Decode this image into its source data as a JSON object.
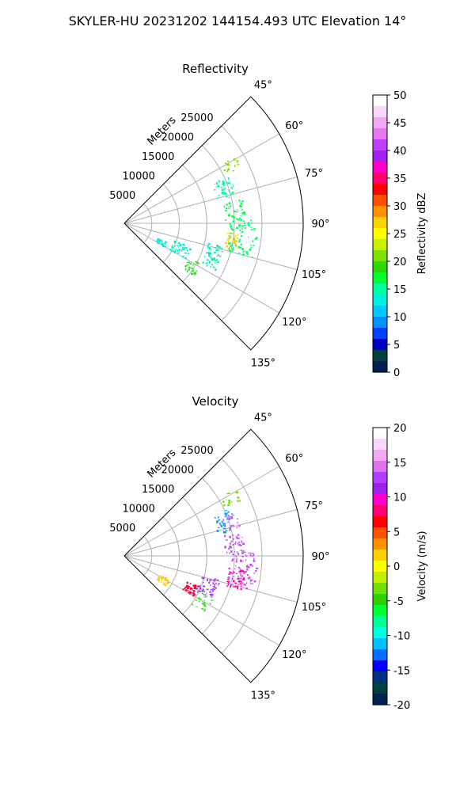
{
  "suptitle": "SKYLER-HU  20231202  144154.493 UTC Elevation 14°",
  "chart_data": [
    {
      "type": "polar-sector",
      "title": "Reflectivity",
      "range_label": "Meters",
      "range_ticks": [
        "5000",
        "10000",
        "15000",
        "20000",
        "25000"
      ],
      "range_tick_values": [
        5000,
        10000,
        15000,
        20000,
        25000
      ],
      "range_max": 32500,
      "theta_ticks": [
        "45°",
        "60°",
        "75°",
        "90°",
        "105°",
        "120°",
        "135°"
      ],
      "theta_tick_values": [
        45,
        60,
        75,
        90,
        105,
        120,
        135
      ],
      "theta_range": [
        45,
        135
      ],
      "colorbar": {
        "label": "Reflectivity dBZ",
        "vmin": 0,
        "vmax": 50,
        "ticks": [
          "0",
          "5",
          "10",
          "15",
          "20",
          "25",
          "30",
          "35",
          "40",
          "45",
          "50"
        ],
        "colors": [
          "#ffffff",
          "#f8d8f8",
          "#f0a8f0",
          "#e878f0",
          "#c040ff",
          "#a020f0",
          "#ff00c8",
          "#ff0070",
          "#ff0000",
          "#ff5000",
          "#ff9000",
          "#ffd000",
          "#ffff00",
          "#c8f000",
          "#80e000",
          "#30d800",
          "#00ff30",
          "#00ffa0",
          "#00f0e0",
          "#00c8ff",
          "#0090ff",
          "#0040ff",
          "#0000c0",
          "#004040",
          "#002050"
        ]
      },
      "data_clusters": [
        {
          "theta": 61,
          "r": 22000,
          "dr": 1800,
          "dth": 3,
          "n": 14,
          "color": "#7ee000"
        },
        {
          "theta": 71,
          "r": 19200,
          "dr": 1800,
          "dth": 6,
          "n": 40,
          "color": "#00ffa0"
        },
        {
          "theta": 83,
          "r": 20000,
          "dr": 1800,
          "dth": 5,
          "n": 40,
          "color": "#00ff50"
        },
        {
          "theta": 96,
          "r": 21500,
          "dr": 2500,
          "dth": 9,
          "n": 80,
          "color": "#00ff78"
        },
        {
          "theta": 99,
          "r": 19700,
          "dr": 1200,
          "dth": 4,
          "n": 30,
          "color": "#ffd000"
        },
        {
          "theta": 110,
          "r": 17000,
          "dr": 1500,
          "dth": 7,
          "n": 50,
          "color": "#00f0b0"
        },
        {
          "theta": 114,
          "r": 11000,
          "dr": 1800,
          "dth": 6,
          "n": 40,
          "color": "#00f0d0"
        },
        {
          "theta": 117,
          "r": 7500,
          "dr": 1000,
          "dth": 4,
          "n": 25,
          "color": "#00e8e0"
        },
        {
          "theta": 122,
          "r": 14500,
          "dr": 1200,
          "dth": 5,
          "n": 30,
          "color": "#30e030"
        }
      ]
    },
    {
      "type": "polar-sector",
      "title": "Velocity",
      "range_label": "Meters",
      "range_ticks": [
        "5000",
        "10000",
        "15000",
        "20000",
        "25000"
      ],
      "range_tick_values": [
        5000,
        10000,
        15000,
        20000,
        25000
      ],
      "range_max": 32500,
      "theta_ticks": [
        "45°",
        "60°",
        "75°",
        "90°",
        "105°",
        "120°",
        "135°"
      ],
      "theta_tick_values": [
        45,
        60,
        75,
        90,
        105,
        120,
        135
      ],
      "theta_range": [
        45,
        135
      ],
      "colorbar": {
        "label": "Velocity (m/s)",
        "vmin": -20,
        "vmax": 20,
        "ticks": [
          "-20",
          "-15",
          "-10",
          "-5",
          "0",
          "5",
          "10",
          "15",
          "20"
        ],
        "colors": [
          "#ffffff",
          "#f8d8f8",
          "#f0a8f0",
          "#e070f0",
          "#b040ff",
          "#a020f0",
          "#ff00d0",
          "#ff0070",
          "#ff0000",
          "#ff5000",
          "#ff9000",
          "#ffd000",
          "#ffff00",
          "#c0f000",
          "#70e000",
          "#30d000",
          "#00ff30",
          "#00ff90",
          "#00ffe0",
          "#00c0ff",
          "#0070ff",
          "#0000ff",
          "#003080",
          "#004040",
          "#002050"
        ]
      },
      "data_clusters": [
        {
          "theta": 61,
          "r": 22000,
          "dr": 1800,
          "dth": 3,
          "n": 14,
          "color": "#70e000"
        },
        {
          "theta": 71,
          "r": 19200,
          "dr": 1800,
          "dth": 6,
          "n": 40,
          "color": "#00a0ff"
        },
        {
          "theta": 72,
          "r": 20200,
          "dr": 1400,
          "dth": 4,
          "n": 20,
          "color": "#e060f0"
        },
        {
          "theta": 83,
          "r": 20000,
          "dr": 1800,
          "dth": 5,
          "n": 40,
          "color": "#c050ff"
        },
        {
          "theta": 96,
          "r": 21500,
          "dr": 2500,
          "dth": 9,
          "n": 80,
          "color": "#c050ff"
        },
        {
          "theta": 101,
          "r": 20500,
          "dr": 1500,
          "dth": 5,
          "n": 40,
          "color": "#ff00b0"
        },
        {
          "theta": 110,
          "r": 16000,
          "dr": 1800,
          "dth": 6,
          "n": 45,
          "color": "#b040ff"
        },
        {
          "theta": 116,
          "r": 13200,
          "dr": 1300,
          "dth": 4,
          "n": 40,
          "color": "#ff0040"
        },
        {
          "theta": 122,
          "r": 8000,
          "dr": 1200,
          "dth": 4,
          "n": 25,
          "color": "#ffc800"
        },
        {
          "theta": 120,
          "r": 16500,
          "dr": 1500,
          "dth": 6,
          "n": 25,
          "color": "#40e030"
        }
      ]
    }
  ]
}
